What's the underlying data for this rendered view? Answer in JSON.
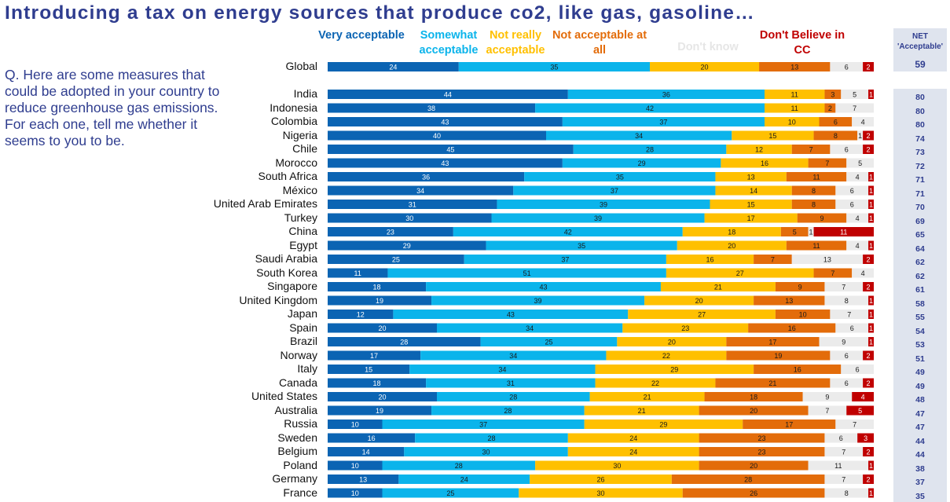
{
  "title": "Introducing a tax on energy sources that produce co2, like gas, gasoline…",
  "question": "Q. Here are some measures that could be adopted in your country to reduce greenhouse gas emissions. For each one, tell me whether it seems to you to be.",
  "legend": [
    {
      "label": "Very acceptable",
      "color": "#0b64b3"
    },
    {
      "label": "Somewhat acceptable",
      "color": "#0bb4eb"
    },
    {
      "label": "Not really acceptable",
      "color": "#ffc000"
    },
    {
      "label": "Not acceptable at all",
      "color": "#e36c0a"
    },
    {
      "label": "Don't know",
      "color": "#ebebeb"
    },
    {
      "label": "Don't Believe in CC",
      "color": "#c00000"
    }
  ],
  "net_header": {
    "line1": "NET",
    "line2": "'Acceptable'"
  },
  "chart_data": {
    "type": "bar",
    "orientation": "horizontal",
    "stacked": true,
    "normalized": true,
    "categories": [
      "Global",
      "India",
      "Indonesia",
      "Colombia",
      "Nigeria",
      "Chile",
      "Morocco",
      "South Africa",
      "México",
      "United Arab Emirates",
      "Turkey",
      "China",
      "Egypt",
      "Saudi Arabia",
      "South Korea",
      "Singapore",
      "United Kingdom",
      "Japan",
      "Spain",
      "Brazil",
      "Norway",
      "Italy",
      "Canada",
      "United States",
      "Australia",
      "Russia",
      "Sweden",
      "Belgium",
      "Poland",
      "Germany",
      "France"
    ],
    "series": [
      {
        "name": "Very acceptable",
        "values": [
          24,
          44,
          38,
          43,
          40,
          45,
          43,
          36,
          34,
          31,
          30,
          23,
          29,
          25,
          11,
          18,
          19,
          12,
          20,
          28,
          17,
          15,
          18,
          20,
          19,
          10,
          16,
          14,
          10,
          13,
          10
        ]
      },
      {
        "name": "Somewhat acceptable",
        "values": [
          35,
          36,
          42,
          37,
          34,
          28,
          29,
          35,
          37,
          39,
          39,
          42,
          35,
          37,
          51,
          43,
          39,
          43,
          34,
          25,
          34,
          34,
          31,
          28,
          28,
          37,
          28,
          30,
          28,
          24,
          25
        ]
      },
      {
        "name": "Not really acceptable",
        "values": [
          20,
          11,
          11,
          10,
          15,
          12,
          16,
          13,
          14,
          15,
          17,
          18,
          20,
          16,
          27,
          21,
          20,
          27,
          23,
          20,
          22,
          29,
          22,
          21,
          21,
          29,
          24,
          24,
          30,
          26,
          30
        ]
      },
      {
        "name": "Not acceptable at all",
        "values": [
          13,
          3,
          2,
          6,
          8,
          7,
          7,
          11,
          8,
          8,
          9,
          5,
          11,
          7,
          7,
          9,
          13,
          10,
          16,
          17,
          19,
          16,
          21,
          18,
          20,
          17,
          23,
          23,
          20,
          28,
          26
        ]
      },
      {
        "name": "Don't know",
        "values": [
          6,
          5,
          7,
          4,
          1,
          6,
          5,
          4,
          6,
          6,
          4,
          1,
          4,
          13,
          4,
          7,
          8,
          7,
          6,
          9,
          6,
          6,
          6,
          9,
          7,
          7,
          6,
          7,
          11,
          7,
          8
        ]
      },
      {
        "name": "Don't Believe in CC",
        "values": [
          2,
          1,
          0,
          0,
          2,
          2,
          0,
          1,
          1,
          1,
          1,
          11,
          1,
          2,
          0,
          2,
          1,
          1,
          1,
          1,
          2,
          0,
          2,
          4,
          5,
          0,
          3,
          2,
          1,
          2,
          1
        ]
      }
    ],
    "net_acceptable": [
      59,
      80,
      80,
      80,
      74,
      73,
      72,
      71,
      71,
      70,
      69,
      65,
      64,
      62,
      62,
      61,
      58,
      55,
      54,
      53,
      51,
      49,
      49,
      48,
      47,
      47,
      44,
      44,
      38,
      37,
      35
    ],
    "gap_after": 0
  }
}
